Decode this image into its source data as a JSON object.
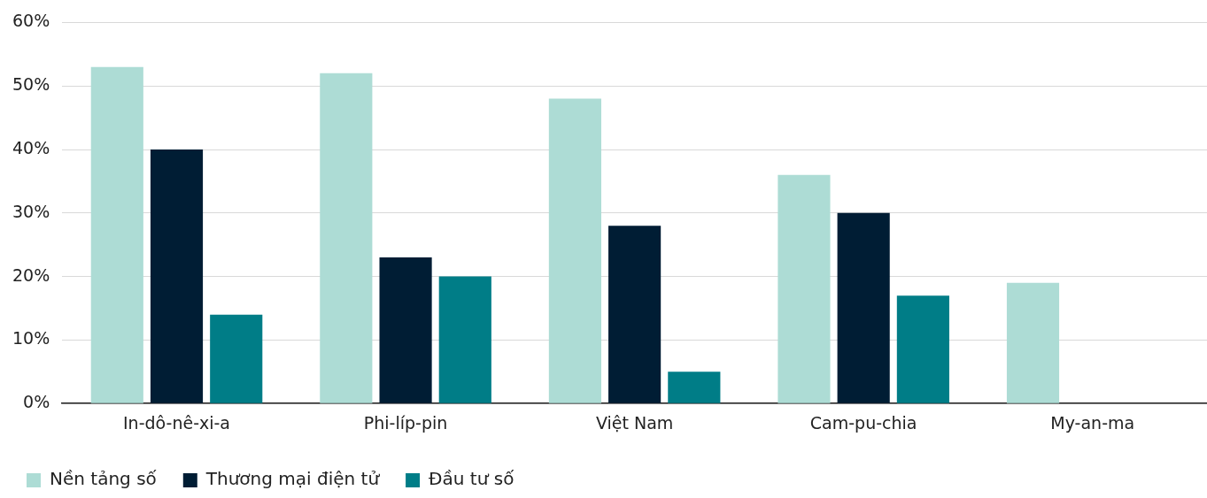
{
  "chart_data": {
    "type": "bar",
    "categories": [
      "In-dô-nê-xi-a",
      "Phi-líp-pin",
      "Việt Nam",
      "Cam-pu-chia",
      "My-an-ma"
    ],
    "series": [
      {
        "name": "Nền tảng số",
        "color": "#addcd5",
        "values": [
          53,
          52,
          48,
          36,
          19
        ]
      },
      {
        "name": "Thương mại điện tử",
        "color": "#001d34",
        "values": [
          40,
          23,
          28,
          30,
          null
        ]
      },
      {
        "name": "Đầu tư số",
        "color": "#007d87",
        "values": [
          14,
          20,
          5,
          17,
          null
        ]
      }
    ],
    "ylim": [
      0,
      60
    ],
    "yticks": [
      {
        "value": 0,
        "label": "0%"
      },
      {
        "value": 10,
        "label": "10%"
      },
      {
        "value": 20,
        "label": "20%"
      },
      {
        "value": 30,
        "label": "30%"
      },
      {
        "value": 40,
        "label": "40%"
      },
      {
        "value": 50,
        "label": "50%"
      },
      {
        "value": 60,
        "label": "60%"
      }
    ],
    "grid": "y",
    "legend": "bottom left"
  }
}
